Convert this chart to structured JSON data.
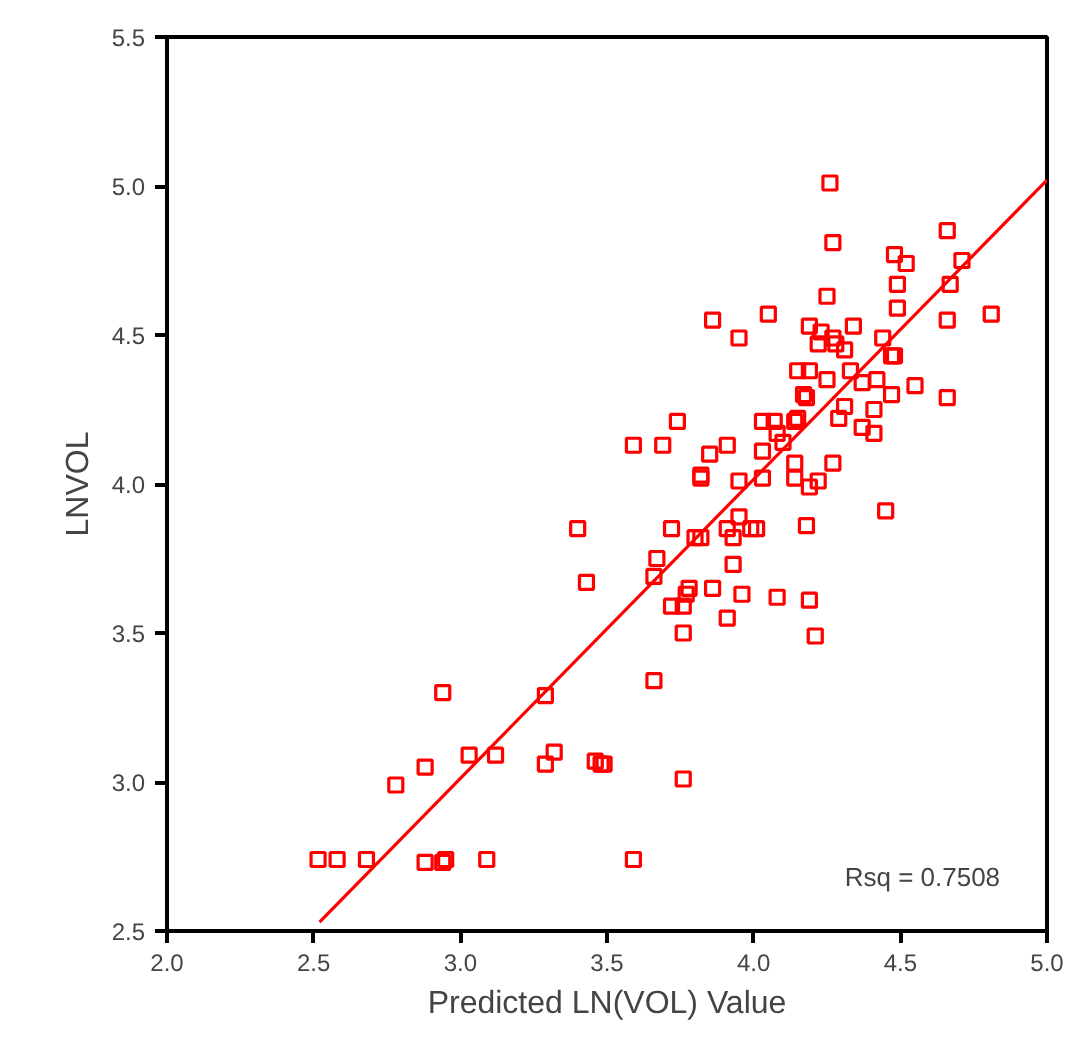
{
  "chart_data": {
    "type": "scatter",
    "xlabel": "Predicted LN(VOL) Value",
    "ylabel": "LNVOL",
    "marker": "square",
    "grid": false,
    "xlim": [
      2.0,
      5.0
    ],
    "ylim": [
      2.5,
      5.5
    ],
    "xticks": [
      {
        "value": 2.0,
        "label": "2.0"
      },
      {
        "value": 2.5,
        "label": "2.5"
      },
      {
        "value": 3.0,
        "label": "3.0"
      },
      {
        "value": 3.5,
        "label": "3.5"
      },
      {
        "value": 4.0,
        "label": "4.0"
      },
      {
        "value": 4.5,
        "label": "4.5"
      },
      {
        "value": 5.0,
        "label": "5.0"
      }
    ],
    "yticks": [
      {
        "value": 2.5,
        "label": "2.5"
      },
      {
        "value": 3.0,
        "label": "3.0"
      },
      {
        "value": 3.5,
        "label": "3.5"
      },
      {
        "value": 4.0,
        "label": "4.0"
      },
      {
        "value": 4.5,
        "label": "4.5"
      },
      {
        "value": 5.0,
        "label": "5.0"
      },
      {
        "value": 5.5,
        "label": "5.5"
      }
    ],
    "annotations": [
      "Rsq = 0.7508"
    ],
    "series": [
      {
        "color": "#ff0000",
        "x": [
          2.515,
          2.58,
          2.68,
          2.88,
          2.94,
          2.95,
          3.09,
          3.59,
          3.4,
          3.43,
          2.94,
          3.29,
          3.03,
          3.12,
          3.29,
          3.32,
          3.46,
          3.48,
          2.88,
          2.78,
          3.66,
          3.49,
          3.76,
          4.45,
          3.82,
          3.95,
          4.03,
          4.14,
          4.19,
          4.22,
          3.72,
          3.82,
          3.8,
          3.91,
          3.95,
          3.93,
          3.99,
          4.01,
          4.18,
          3.67,
          3.66,
          3.93,
          3.78,
          3.77,
          3.86,
          3.96,
          4.08,
          4.19,
          3.72,
          3.76,
          3.91,
          3.76,
          4.21,
          4.26,
          4.27,
          4.66,
          4.48,
          4.52,
          4.71,
          4.49,
          4.67,
          4.25,
          4.49,
          3.86,
          4.05,
          4.66,
          4.81,
          3.95,
          4.19,
          4.23,
          4.34,
          4.27,
          4.22,
          4.28,
          4.31,
          4.44,
          4.47,
          4.48,
          4.15,
          4.19,
          4.33,
          4.25,
          4.37,
          4.42,
          4.17,
          4.18,
          4.55,
          4.47,
          4.66,
          4.31,
          4.41,
          4.29,
          4.37,
          4.41,
          3.74,
          3.59,
          3.69,
          3.85,
          3.91,
          4.03,
          4.07,
          4.15,
          4.14,
          4.03,
          4.08,
          4.1,
          4.14,
          4.27,
          3.82
        ],
        "values": [
          2.74,
          2.74,
          2.74,
          2.73,
          2.73,
          2.74,
          2.74,
          2.74,
          3.85,
          3.67,
          3.3,
          3.29,
          3.09,
          3.09,
          3.06,
          3.1,
          3.07,
          3.06,
          3.05,
          2.99,
          3.34,
          3.06,
          3.01,
          3.91,
          4.02,
          4.01,
          4.02,
          4.02,
          3.99,
          4.01,
          3.85,
          3.82,
          3.82,
          3.85,
          3.89,
          3.82,
          3.85,
          3.85,
          3.86,
          3.75,
          3.69,
          3.73,
          3.65,
          3.63,
          3.65,
          3.63,
          3.62,
          3.61,
          3.59,
          3.59,
          3.55,
          3.5,
          3.49,
          5.01,
          4.81,
          4.85,
          4.77,
          4.74,
          4.75,
          4.67,
          4.67,
          4.63,
          4.59,
          4.55,
          4.57,
          4.55,
          4.57,
          4.49,
          4.53,
          4.51,
          4.53,
          4.49,
          4.47,
          4.47,
          4.45,
          4.49,
          4.43,
          4.43,
          4.38,
          4.38,
          4.38,
          4.35,
          4.34,
          4.35,
          4.3,
          4.29,
          4.33,
          4.3,
          4.29,
          4.26,
          4.25,
          4.22,
          4.19,
          4.17,
          4.21,
          4.13,
          4.13,
          4.1,
          4.13,
          4.21,
          4.21,
          4.22,
          4.21,
          4.11,
          4.17,
          4.14,
          4.07,
          4.07,
          4.03
        ]
      },
      {
        "type": "line",
        "marker": "none",
        "color": "#ff0000",
        "x": [
          2.52,
          5.0
        ],
        "values": [
          2.53,
          5.02
        ]
      }
    ]
  }
}
